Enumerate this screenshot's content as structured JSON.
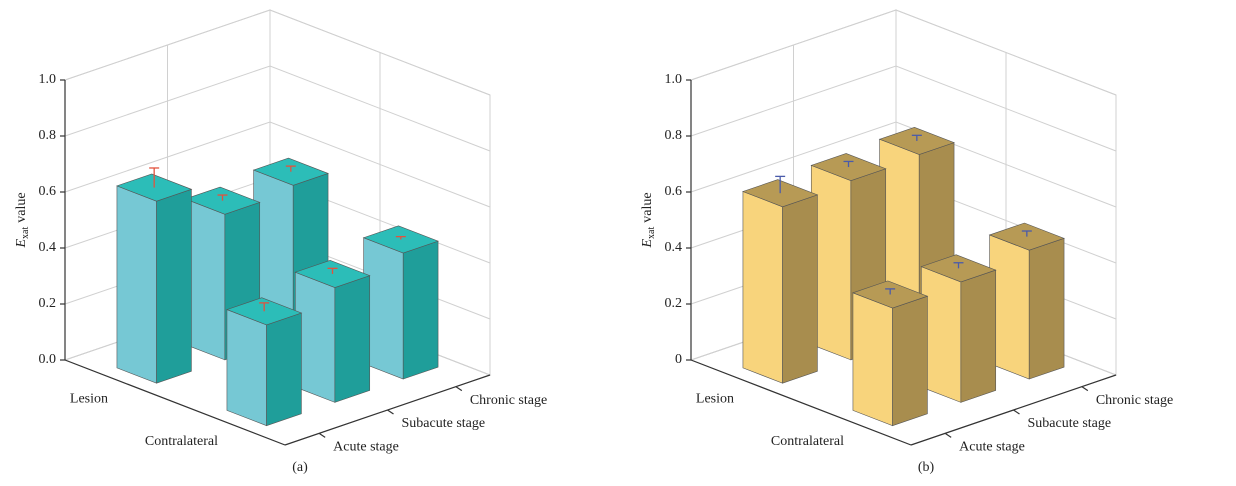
{
  "chart_data": [
    {
      "type": "bar3d",
      "caption": "(a)",
      "ylabel": {
        "symbol": "E",
        "subscript": "xat",
        "text": "value"
      },
      "categories": [
        "Lesion",
        "Contralateral"
      ],
      "series": [
        {
          "name": "Acute stage",
          "values": [
            0.65,
            0.36
          ],
          "errors": [
            0.07,
            0.03
          ]
        },
        {
          "name": "Subacute stage",
          "values": [
            0.52,
            0.41
          ],
          "errors": [
            0.02,
            0.02
          ]
        },
        {
          "name": "Chronic stage",
          "values": [
            0.54,
            0.45
          ],
          "errors": [
            0.02,
            0.01
          ]
        }
      ],
      "color": "#76c8d4",
      "side_color": "#1f9e9a",
      "top_color": "#2cbdb8",
      "error_color": "#e2523e",
      "ylim": [
        0,
        1
      ],
      "yticks": [
        {
          "value": 0,
          "label": "0.0"
        },
        0.2,
        0.4,
        0.6,
        0.8,
        {
          "value": 1,
          "label": "1.0"
        }
      ],
      "grid": true
    },
    {
      "type": "bar3d",
      "caption": "(b)",
      "ylabel": {
        "symbol": "E",
        "subscript": "xat",
        "text": "value"
      },
      "categories": [
        "Lesion",
        "Contralateral"
      ],
      "series": [
        {
          "name": "Acute stage",
          "values": [
            0.63,
            0.42
          ],
          "errors": [
            0.06,
            0.02
          ]
        },
        {
          "name": "Subacute stage",
          "values": [
            0.64,
            0.43
          ],
          "errors": [
            0.02,
            0.02
          ]
        },
        {
          "name": "Chronic stage",
          "values": [
            0.65,
            0.46
          ],
          "errors": [
            0.02,
            0.02
          ]
        }
      ],
      "color": "#f8d47c",
      "side_color": "#a88d4e",
      "top_color": "#b79a55",
      "error_color": "#4a5bab",
      "ylim": [
        0,
        1
      ],
      "yticks": [
        0,
        0.2,
        0.4,
        0.6,
        0.8,
        {
          "value": 1,
          "label": "1.0"
        }
      ],
      "grid": true
    }
  ]
}
